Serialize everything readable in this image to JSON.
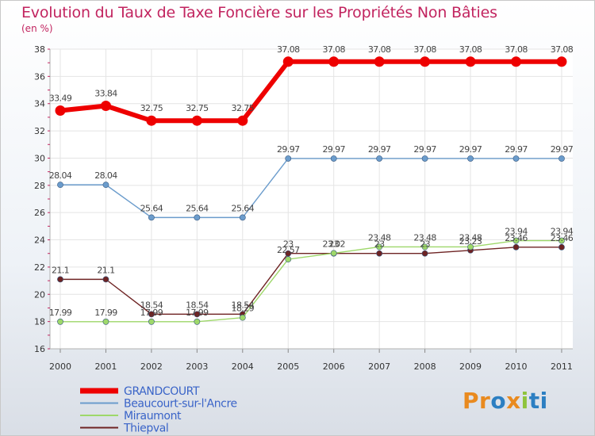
{
  "chart_data": {
    "type": "line",
    "title": "Evolution du Taux de Taxe Foncière sur les Propriétés Non Bâties",
    "ylabel": "(en %)",
    "xlabel": "",
    "ylim": [
      16,
      38
    ],
    "yticks": [
      "16",
      "18",
      "20",
      "22",
      "24",
      "26",
      "28",
      "30",
      "32",
      "34",
      "36",
      "38"
    ],
    "categories": [
      "2000",
      "2001",
      "2002",
      "2003",
      "2004",
      "2005",
      "2006",
      "2007",
      "2008",
      "2009",
      "2010",
      "2011"
    ],
    "series": [
      {
        "name": "GRANDCOURT",
        "color": "#ee0000",
        "values": [
          33.49,
          33.84,
          32.75,
          32.75,
          32.75,
          37.08,
          37.08,
          37.08,
          37.08,
          37.08,
          37.08,
          37.08
        ],
        "labels": [
          "33.49",
          "33.84",
          "32.75",
          "32.75",
          "32.75",
          "37.08",
          "37.08",
          "37.08",
          "37.08",
          "37.08",
          "37.08",
          "37.08"
        ]
      },
      {
        "name": "Beaucourt-sur-l'Ancre",
        "color": "#6b9ccc",
        "values": [
          28.04,
          28.04,
          25.64,
          25.64,
          25.64,
          29.97,
          29.97,
          29.97,
          29.97,
          29.97,
          29.97,
          29.97
        ],
        "labels": [
          "28.04",
          "28.04",
          "25.64",
          "25.64",
          "25.64",
          "29.97",
          "29.97",
          "29.97",
          "29.97",
          "29.97",
          "29.97",
          "29.97"
        ]
      },
      {
        "name": "Miraumont",
        "color": "#9ed86a",
        "values": [
          17.99,
          17.99,
          17.99,
          17.99,
          18.29,
          22.57,
          23.02,
          23.48,
          23.48,
          23.48,
          23.94,
          23.94
        ],
        "labels": [
          "17.99",
          "17.99",
          "17.99",
          "17.99",
          "18.29",
          "22.57",
          "23.02",
          "23.48",
          "23.48",
          "23.48",
          "23.94",
          "23.94"
        ]
      },
      {
        "name": "Thiepval",
        "color": "#6e2323",
        "values": [
          21.1,
          21.1,
          18.54,
          18.54,
          18.54,
          23,
          23,
          23,
          23,
          23.23,
          23.46,
          23.46
        ],
        "labels": [
          "21.1",
          "21.1",
          "18.54",
          "18.54",
          "18.54",
          "23",
          "23",
          "23",
          "23",
          "23.23",
          "23.46",
          "23.46"
        ]
      }
    ],
    "legend_position": "bottom-left"
  },
  "logo": {
    "parts": [
      "Pr",
      "o",
      "x",
      "i",
      "ti"
    ]
  }
}
